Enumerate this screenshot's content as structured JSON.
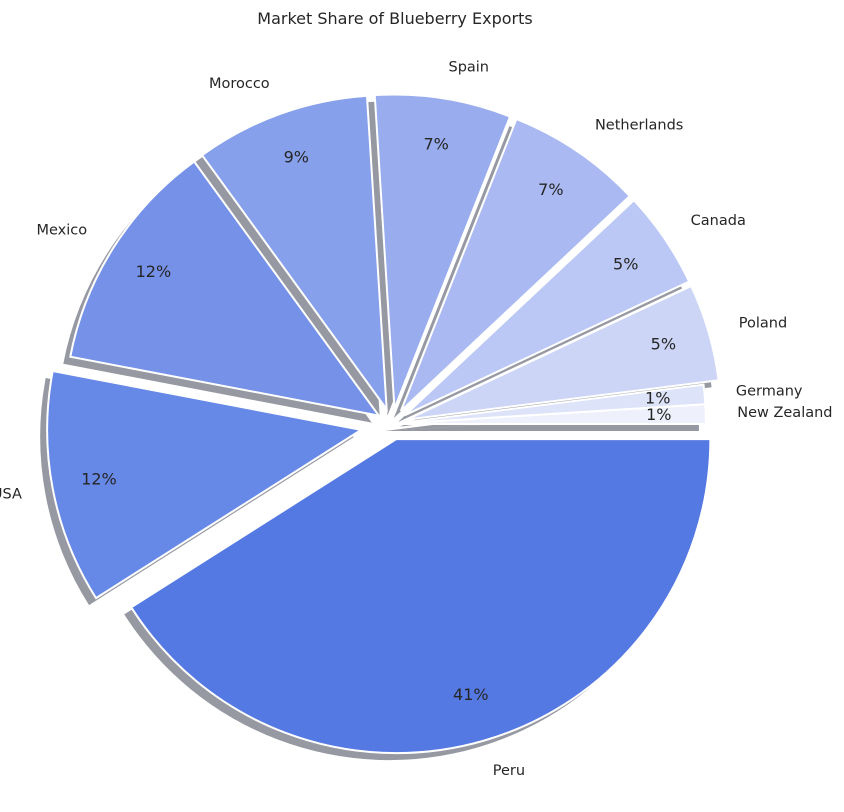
{
  "chart_data": {
    "type": "pie",
    "title": "Market Share of Blueberry Exports",
    "slices": [
      {
        "label": "Peru",
        "value": 41,
        "pct_label": "41%",
        "color": "#5579e3"
      },
      {
        "label": "USA",
        "value": 12,
        "pct_label": "12%",
        "color": "#6688e6"
      },
      {
        "label": "Mexico",
        "value": 12,
        "pct_label": "12%",
        "color": "#7591e8"
      },
      {
        "label": "Morocco",
        "value": 9,
        "pct_label": "9%",
        "color": "#87a0eb"
      },
      {
        "label": "Spain",
        "value": 7,
        "pct_label": "7%",
        "color": "#98acee"
      },
      {
        "label": "Netherlands",
        "value": 7,
        "pct_label": "7%",
        "color": "#aab9f1"
      },
      {
        "label": "Canada",
        "value": 5,
        "pct_label": "5%",
        "color": "#bbc7f4"
      },
      {
        "label": "Poland",
        "value": 5,
        "pct_label": "5%",
        "color": "#ccd5f6"
      },
      {
        "label": "Germany",
        "value": 1,
        "pct_label": "1%",
        "color": "#dde3f9"
      },
      {
        "label": "New Zealand",
        "value": 1,
        "pct_label": "1%",
        "color": "#eef1fc"
      }
    ],
    "start_angle": "0° (3 o'clock), clockwise",
    "exploded": true,
    "shadow": true,
    "legend": "none"
  }
}
